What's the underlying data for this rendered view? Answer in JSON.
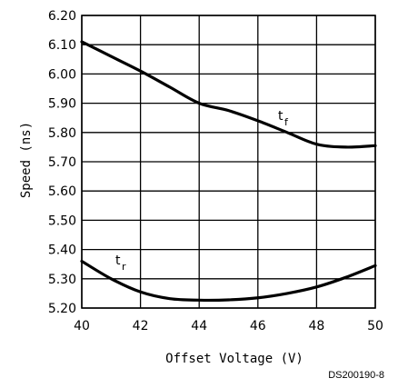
{
  "chart_data": {
    "type": "line",
    "xlabel": "Offset Voltage (V)",
    "ylabel": "Speed (ns)",
    "xlim": [
      40,
      50
    ],
    "ylim": [
      5.2,
      6.2
    ],
    "xticks": [
      "40",
      "42",
      "44",
      "46",
      "48",
      "50"
    ],
    "yticks": [
      "5.20",
      "5.30",
      "5.40",
      "5.50",
      "5.60",
      "5.70",
      "5.80",
      "5.90",
      "6.00",
      "6.10",
      "6.20"
    ],
    "grid": true,
    "series": [
      {
        "name": "tf",
        "label_main": "t",
        "label_sub": "f",
        "x": [
          40,
          41,
          42,
          43,
          44,
          45,
          46,
          47,
          48,
          49,
          50
        ],
        "y": [
          6.11,
          6.06,
          6.01,
          5.955,
          5.9,
          5.875,
          5.84,
          5.8,
          5.76,
          5.75,
          5.755
        ]
      },
      {
        "name": "tr",
        "label_main": "t",
        "label_sub": "r",
        "x": [
          40,
          41,
          42,
          43,
          44,
          45,
          46,
          47,
          48,
          49,
          50
        ],
        "y": [
          5.36,
          5.3,
          5.255,
          5.232,
          5.227,
          5.228,
          5.235,
          5.25,
          5.272,
          5.305,
          5.345
        ]
      }
    ]
  },
  "footer": {
    "doc_id": "DS200190-8"
  }
}
